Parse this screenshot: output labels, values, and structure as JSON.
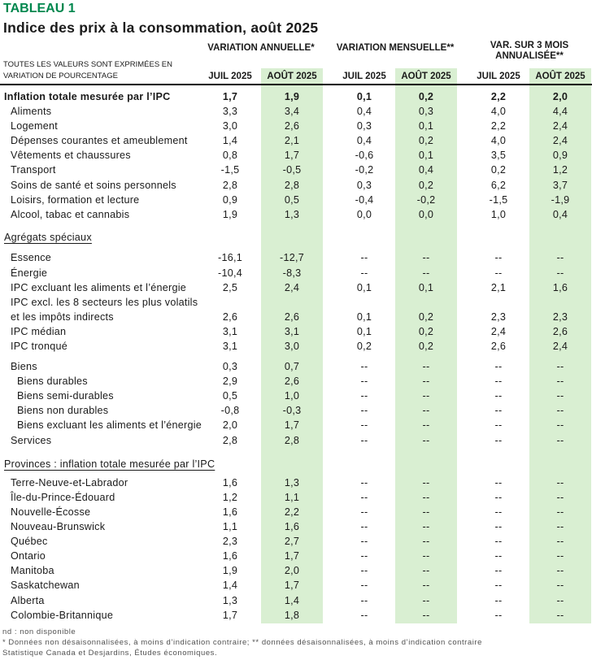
{
  "colors": {
    "heading_green": "#00874E",
    "band_green": "#D9EFD2"
  },
  "chart_data": {
    "type": "table",
    "table_number": "TABLEAU 1",
    "title": "Indice des prix à la consommation, août 2025",
    "unit_note_lines": [
      "TOUTES LES VALEURS SONT EXPRIMÉES EN",
      "VARIATION DE POURCENTAGE"
    ],
    "column_groups": [
      {
        "lines": [
          "VARIATION ANNUELLE*"
        ]
      },
      {
        "lines": [
          "VARIATION MENSUELLE**"
        ]
      },
      {
        "lines": [
          "VAR. SUR 3 MOIS",
          "ANNUALISÉE**"
        ]
      }
    ],
    "columns": [
      "JUIL 2025",
      "AOÛT 2025",
      "JUIL 2025",
      "AOÛT 2025",
      "JUIL 2025",
      "AOÛT 2025"
    ],
    "rows": [
      {
        "t": "d",
        "b": true,
        "in": 0,
        "label": "Inflation totale mesurée par l’IPC",
        "v": [
          "1,7",
          "1,9",
          "0,1",
          "0,2",
          "2,2",
          "2,0"
        ]
      },
      {
        "t": "d",
        "in": 1,
        "label": "Aliments",
        "v": [
          "3,3",
          "3,4",
          "0,4",
          "0,3",
          "4,0",
          "4,4"
        ]
      },
      {
        "t": "d",
        "in": 1,
        "label": "Logement",
        "v": [
          "3,0",
          "2,6",
          "0,3",
          "0,1",
          "2,2",
          "2,4"
        ]
      },
      {
        "t": "d",
        "in": 1,
        "label": "Dépenses courantes et ameublement",
        "v": [
          "1,4",
          "2,1",
          "0,4",
          "0,2",
          "4,0",
          "2,4"
        ]
      },
      {
        "t": "d",
        "in": 1,
        "label": "Vêtements et chaussures",
        "v": [
          "0,8",
          "1,7",
          "-0,6",
          "0,1",
          "3,5",
          "0,9"
        ]
      },
      {
        "t": "d",
        "in": 1,
        "label": "Transport",
        "v": [
          "-1,5",
          "-0,5",
          "-0,2",
          "0,4",
          "0,2",
          "1,2"
        ]
      },
      {
        "t": "d",
        "in": 1,
        "label": "Soins de santé et soins personnels",
        "v": [
          "2,8",
          "2,8",
          "0,3",
          "0,2",
          "6,2",
          "3,7"
        ]
      },
      {
        "t": "d",
        "in": 1,
        "label": "Loisirs, formation et lecture",
        "v": [
          "0,9",
          "0,5",
          "-0,4",
          "-0,2",
          "-1,5",
          "-1,9"
        ]
      },
      {
        "t": "d",
        "in": 1,
        "label": "Alcool, tabac et cannabis",
        "v": [
          "1,9",
          "1,3",
          "0,0",
          "0,0",
          "1,0",
          "0,4"
        ]
      },
      {
        "t": "s",
        "h": 10
      },
      {
        "t": "h",
        "label": "Agrégats spéciaux"
      },
      {
        "t": "s",
        "h": 7.5
      },
      {
        "t": "d",
        "in": 1,
        "label": "Essence",
        "v": [
          "-16,1",
          "-12,7",
          "--",
          "--",
          "--",
          "--"
        ]
      },
      {
        "t": "d",
        "in": 1,
        "label": "Énergie",
        "v": [
          "-10,4",
          "-8,3",
          "--",
          "--",
          "--",
          "--"
        ]
      },
      {
        "t": "d",
        "in": 1,
        "label": "IPC excluant les aliments et l’énergie",
        "v": [
          "2,5",
          "2,4",
          "0,1",
          "0,1",
          "2,1",
          "1,6"
        ]
      },
      {
        "t": "d",
        "in": 1,
        "label": "IPC excl. les 8 secteurs les plus volatils",
        "v": [
          "",
          "",
          "",
          "",
          "",
          ""
        ]
      },
      {
        "t": "d",
        "in": 1,
        "label": "et les impôts indirects",
        "v": [
          "2,6",
          "2,6",
          "0,1",
          "0,2",
          "2,3",
          "2,3"
        ]
      },
      {
        "t": "d",
        "in": 1,
        "label": "IPC médian",
        "v": [
          "3,1",
          "3,1",
          "0,1",
          "0,2",
          "2,4",
          "2,6"
        ]
      },
      {
        "t": "d",
        "in": 1,
        "label": "IPC tronqué",
        "v": [
          "3,1",
          "3,0",
          "0,2",
          "0,2",
          "2,6",
          "2,4"
        ]
      },
      {
        "t": "s",
        "h": 7
      },
      {
        "t": "d",
        "in": 1,
        "label": "Biens",
        "v": [
          "0,3",
          "0,7",
          "--",
          "--",
          "--",
          "--"
        ]
      },
      {
        "t": "d",
        "in": 2,
        "label": "Biens durables",
        "v": [
          "2,9",
          "2,6",
          "--",
          "--",
          "--",
          "--"
        ]
      },
      {
        "t": "d",
        "in": 2,
        "label": "Biens semi-durables",
        "v": [
          "0,5",
          "1,0",
          "--",
          "--",
          "--",
          "--"
        ]
      },
      {
        "t": "d",
        "in": 2,
        "label": "Biens non durables",
        "v": [
          "-0,8",
          "-0,3",
          "--",
          "--",
          "--",
          "--"
        ]
      },
      {
        "t": "d",
        "in": 2,
        "label": "Biens excluant les aliments et l’énergie",
        "v": [
          "2,0",
          "1,7",
          "--",
          "--",
          "--",
          "--"
        ]
      },
      {
        "t": "d",
        "in": 1,
        "label": "Services",
        "v": [
          "2,8",
          "2,8",
          "--",
          "--",
          "--",
          "--"
        ]
      },
      {
        "t": "s",
        "h": 11.5
      },
      {
        "t": "h",
        "label": "Provinces : inflation totale mesurée par l’IPC"
      },
      {
        "t": "s",
        "h": 4.5
      },
      {
        "t": "d",
        "in": 1,
        "label": "Terre-Neuve-et-Labrador",
        "v": [
          "1,6",
          "1,3",
          "--",
          "--",
          "--",
          "--"
        ]
      },
      {
        "t": "d",
        "in": 1,
        "label": "Île-du-Prince-Édouard",
        "v": [
          "1,2",
          "1,1",
          "--",
          "--",
          "--",
          "--"
        ]
      },
      {
        "t": "d",
        "in": 1,
        "label": "Nouvelle-Écosse",
        "v": [
          "1,6",
          "2,2",
          "--",
          "--",
          "--",
          "--"
        ]
      },
      {
        "t": "d",
        "in": 1,
        "label": "Nouveau-Brunswick",
        "v": [
          "1,1",
          "1,6",
          "--",
          "--",
          "--",
          "--"
        ]
      },
      {
        "t": "d",
        "in": 1,
        "label": "Québec",
        "v": [
          "2,3",
          "2,7",
          "--",
          "--",
          "--",
          "--"
        ]
      },
      {
        "t": "d",
        "in": 1,
        "label": "Ontario",
        "v": [
          "1,6",
          "1,7",
          "--",
          "--",
          "--",
          "--"
        ]
      },
      {
        "t": "d",
        "in": 1,
        "label": "Manitoba",
        "v": [
          "1,9",
          "2,0",
          "--",
          "--",
          "--",
          "--"
        ]
      },
      {
        "t": "d",
        "in": 1,
        "label": "Saskatchewan",
        "v": [
          "1,4",
          "1,7",
          "--",
          "--",
          "--",
          "--"
        ]
      },
      {
        "t": "d",
        "in": 1,
        "label": "Alberta",
        "v": [
          "1,3",
          "1,4",
          "--",
          "--",
          "--",
          "--"
        ]
      },
      {
        "t": "d",
        "in": 1,
        "label": "Colombie-Britannique",
        "v": [
          "1,7",
          "1,8",
          "--",
          "--",
          "--",
          "--"
        ]
      }
    ],
    "footnotes": [
      "nd : non disponible",
      "* Données non désaisonnalisées, à moins d’indication contraire; ** données désaisonnalisées, à moins d’indication contraire",
      "Statistique Canada et Desjardins, Études économiques."
    ]
  }
}
